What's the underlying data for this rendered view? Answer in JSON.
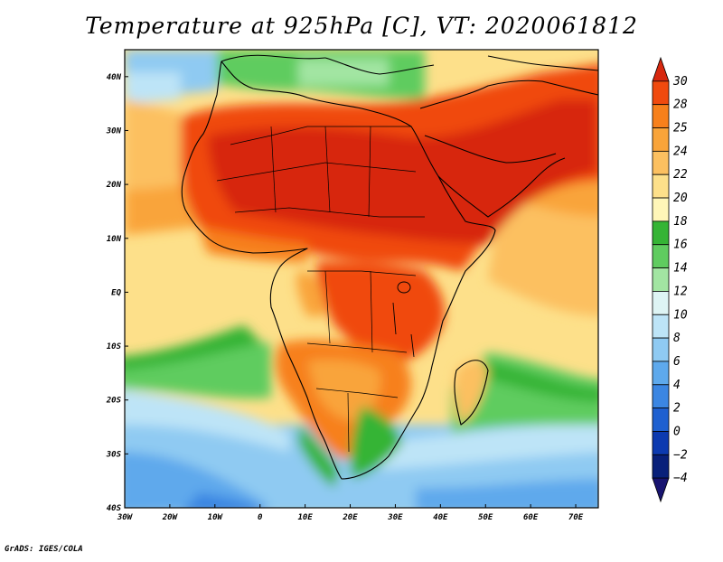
{
  "title": "Temperature at 925hPa [C], VT: 2020061812",
  "footer": "GrADS: IGES/COLA",
  "map": {
    "projection": "lat-lon",
    "lon_range": [
      -30,
      75
    ],
    "lat_range": [
      -40,
      45
    ],
    "lon_ticks": [
      "30W",
      "20W",
      "10W",
      "0",
      "10E",
      "20E",
      "30E",
      "40E",
      "50E",
      "60E",
      "70E"
    ],
    "lat_ticks": [
      "40N",
      "30N",
      "20N",
      "10N",
      "EQ",
      "10S",
      "20S",
      "30S",
      "40S"
    ],
    "field": "temperature",
    "units": "C",
    "pressure_level": "925hPa"
  },
  "colorbar": {
    "labels": [
      "30",
      "28",
      "25",
      "24",
      "22",
      "20",
      "18",
      "16",
      "14",
      "12",
      "10",
      "8",
      "6",
      "4",
      "2",
      "0",
      "-2",
      "-4"
    ],
    "colors": [
      "#d7280f",
      "#f04a0e",
      "#f7801b",
      "#f9a43a",
      "#fcc060",
      "#fde08a",
      "#fff6b8",
      "#35b435",
      "#5fcc5f",
      "#a2e5a2",
      "#def4f4",
      "#bde4f7",
      "#8fcaf2",
      "#5ea9ec",
      "#3b86e2",
      "#1e60d0",
      "#0c3ab0",
      "#08207a",
      "#181470"
    ]
  }
}
